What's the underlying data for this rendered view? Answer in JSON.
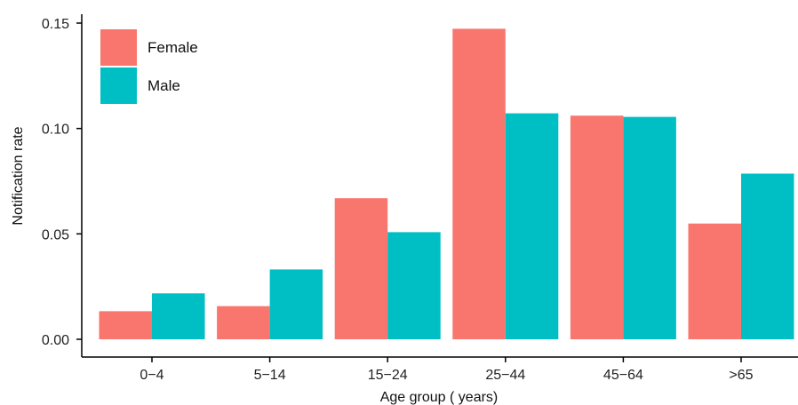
{
  "chart_data": {
    "type": "bar",
    "title": "",
    "xlabel": "Age group ( years)",
    "ylabel": "Notification rate",
    "categories": [
      "0−4",
      "5−14",
      "15−24",
      "25−44",
      "45−64",
      ">65"
    ],
    "series": [
      {
        "name": "Female",
        "color": "#F8766D",
        "values": [
          0.0133,
          0.0157,
          0.0669,
          0.1473,
          0.1061,
          0.0549
        ]
      },
      {
        "name": "Male",
        "color": "#00BFC4",
        "values": [
          0.0218,
          0.0331,
          0.0508,
          0.1072,
          0.1055,
          0.0786
        ]
      }
    ],
    "ylim": [
      0,
      0.155
    ],
    "yticks": [
      0.0,
      0.05,
      0.1,
      0.15
    ],
    "ytick_labels": [
      "0.00",
      "0.05",
      "0.10",
      "0.15"
    ],
    "legend": "top-left",
    "grid": false
  }
}
